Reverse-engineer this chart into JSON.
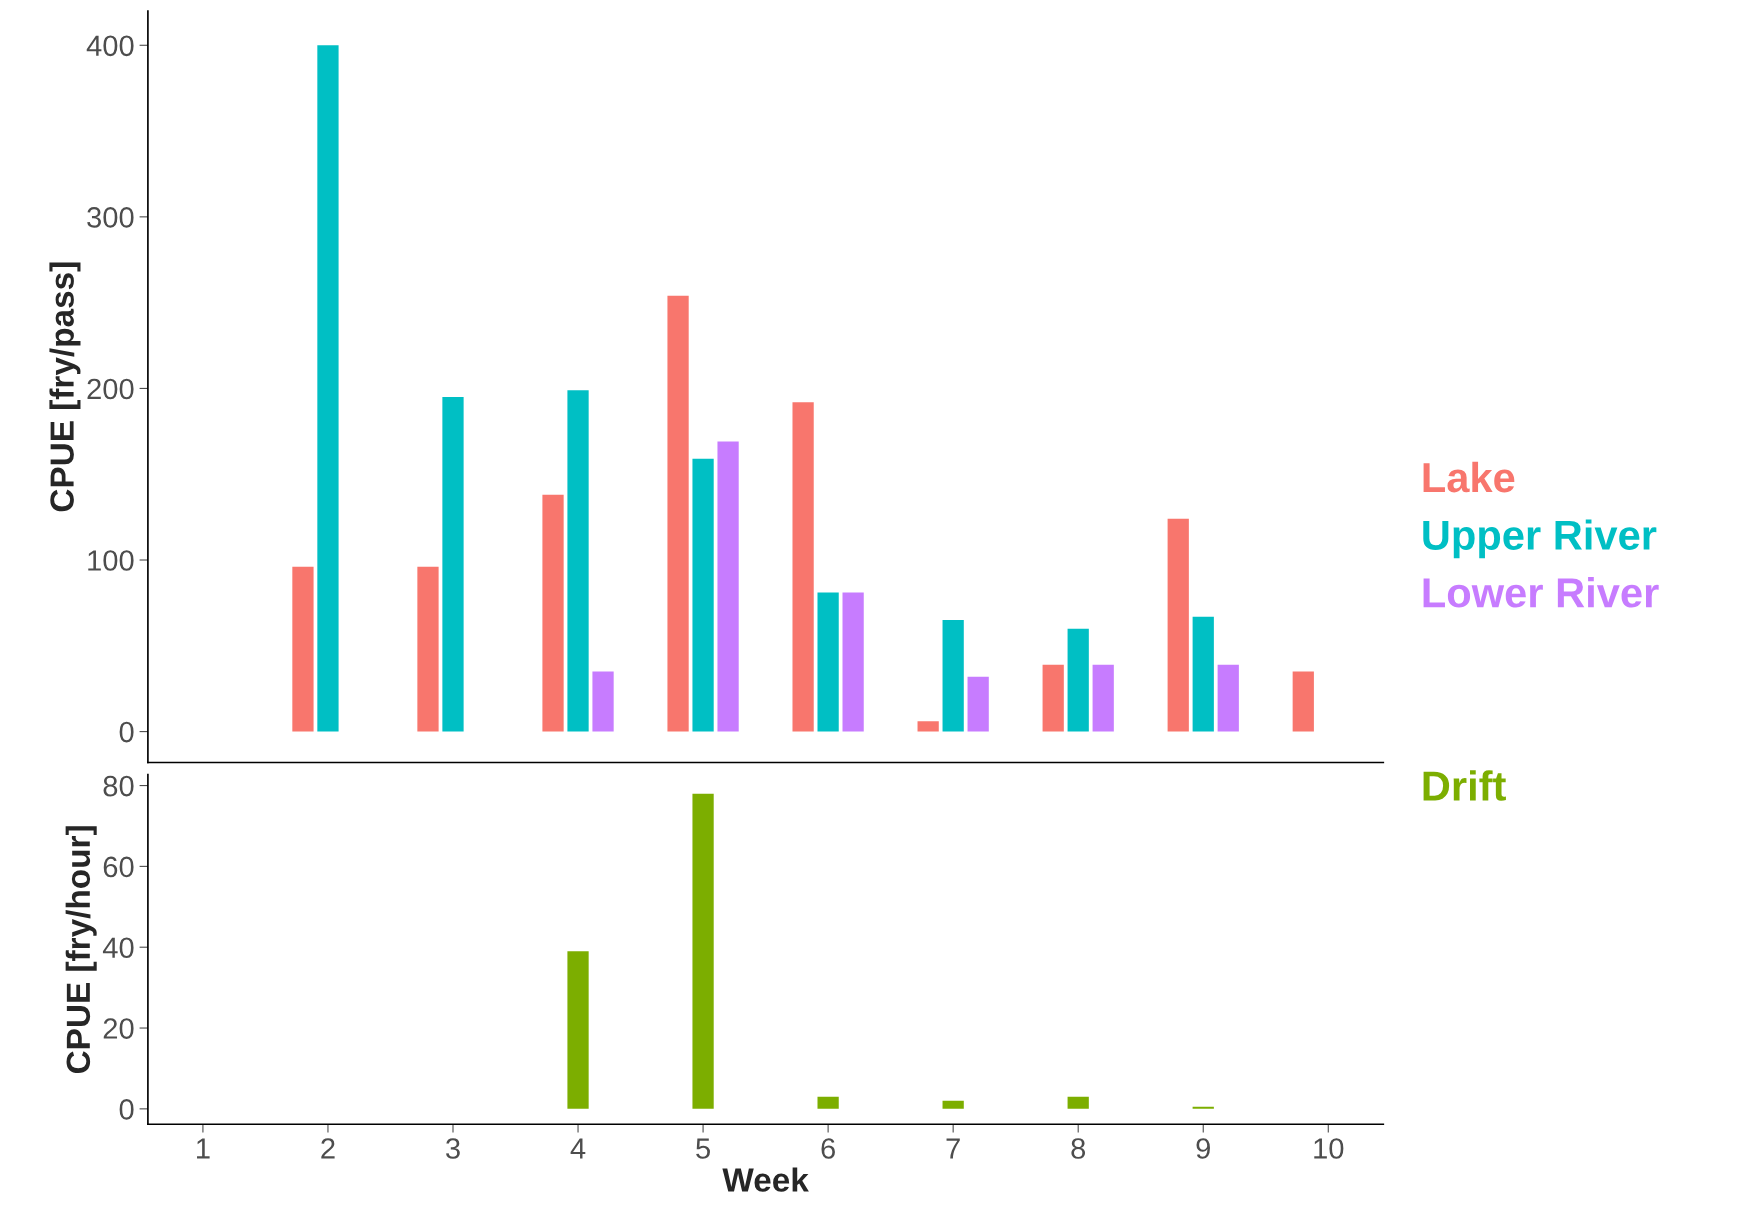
{
  "chart_data": [
    {
      "type": "bar",
      "ylabel": "CPUE [fry/pass]",
      "xlim": [
        0.56,
        10.44
      ],
      "xticks": [
        1,
        2,
        3,
        4,
        5,
        6,
        7,
        8,
        9,
        10
      ],
      "ylim": [
        -18,
        420
      ],
      "yticks": [
        0,
        100,
        200,
        300,
        400
      ],
      "tick_labels": "y",
      "legend": "right",
      "series": [
        {
          "name": "Lake",
          "color": "#f8766d",
          "x": [
            2,
            3,
            4,
            5,
            6,
            7,
            8,
            9,
            10
          ],
          "values": [
            96,
            96,
            138,
            254,
            192,
            6,
            39,
            124,
            35
          ]
        },
        {
          "name": "Upper River",
          "color": "#00bfc4",
          "x": [
            2,
            3,
            4,
            5,
            6,
            7,
            8,
            9
          ],
          "values": [
            400,
            195,
            199,
            159,
            81,
            65,
            60,
            67
          ]
        },
        {
          "name": "Lower River",
          "color": "#c77cff",
          "x": [
            4,
            5,
            6,
            7,
            8,
            9
          ],
          "values": [
            35,
            169,
            81,
            32,
            39,
            39
          ]
        }
      ]
    },
    {
      "type": "bar",
      "ylabel": "CPUE [fry/hour]",
      "xlabel": "Week",
      "xlim": [
        0.56,
        10.44
      ],
      "xticks": [
        1,
        2,
        3,
        4,
        5,
        6,
        7,
        8,
        9,
        10
      ],
      "ylim": [
        -3.8,
        82.7
      ],
      "yticks": [
        0,
        20,
        40,
        60,
        80
      ],
      "legend": "right",
      "series": [
        {
          "name": "Drift",
          "color": "#7cae00",
          "x": [
            4,
            5,
            6,
            7,
            8,
            9
          ],
          "values": [
            39,
            78,
            3,
            2,
            3,
            0.5
          ]
        }
      ]
    }
  ]
}
